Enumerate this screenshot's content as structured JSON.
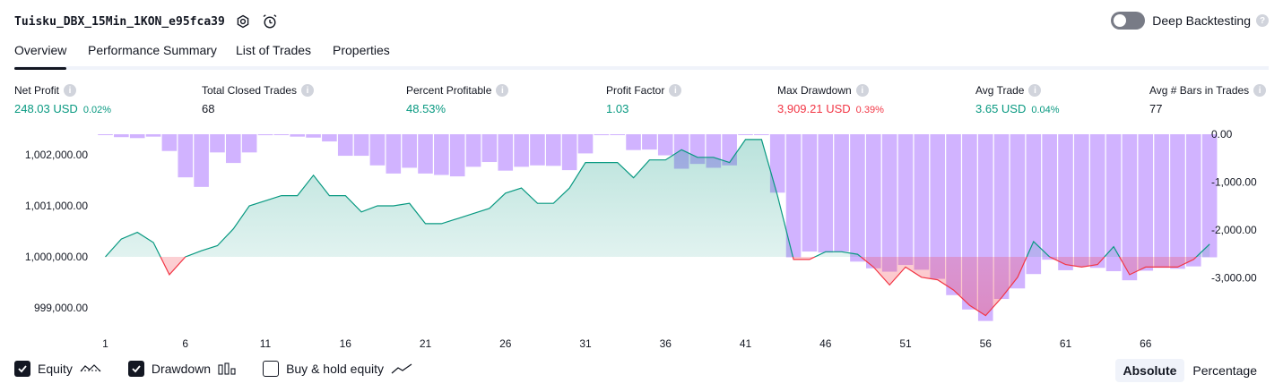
{
  "header": {
    "title": "Tuisku_DBX_15Min_1KON_e95fca39",
    "deep_backtesting_label": "Deep Backtesting"
  },
  "tabs": [
    {
      "label": "Overview",
      "active": true
    },
    {
      "label": "Performance Summary",
      "active": false
    },
    {
      "label": "List of Trades",
      "active": false
    },
    {
      "label": "Properties",
      "active": false
    }
  ],
  "metrics": [
    {
      "label": "Net Profit",
      "value": "248.03 USD",
      "pct": "0.02%",
      "color": "#089981"
    },
    {
      "label": "Total Closed Trades",
      "value": "68",
      "pct": "",
      "color": "#131722"
    },
    {
      "label": "Percent Profitable",
      "value": "48.53%",
      "pct": "",
      "color": "#089981"
    },
    {
      "label": "Profit Factor",
      "value": "1.03",
      "pct": "",
      "color": "#089981"
    },
    {
      "label": "Max Drawdown",
      "value": "3,909.21 USD",
      "pct": "0.39%",
      "color": "#f23645"
    },
    {
      "label": "Avg Trade",
      "value": "3.65 USD",
      "pct": "0.04%",
      "color": "#089981"
    },
    {
      "label": "Avg # Bars in Trades",
      "value": "77",
      "pct": "",
      "color": "#131722"
    }
  ],
  "chart_data": {
    "type": "area",
    "x_ticks": [
      1,
      6,
      11,
      16,
      21,
      26,
      31,
      36,
      41,
      46,
      51,
      56,
      61,
      66
    ],
    "left_axis": {
      "ticks": [
        "1,002,000.00",
        "1,001,000.00",
        "1,000,000.00",
        "999,000.00"
      ],
      "values": [
        1002000,
        1001000,
        1000000,
        999000
      ],
      "ylim": [
        998500,
        1002500
      ]
    },
    "right_axis": {
      "ticks": [
        "0.00",
        "-1,000.00",
        "-2,000.00",
        "-3,000.00"
      ],
      "values": [
        0,
        -1000,
        -2000,
        -3000
      ],
      "ylim": [
        -4000,
        0
      ]
    },
    "series": [
      {
        "name": "Equity",
        "baseline": 1000000,
        "values": [
          1000000,
          1000350,
          1000480,
          1000280,
          999650,
          1000000,
          1000120,
          1000220,
          1000550,
          1001000,
          1001100,
          1001200,
          1001200,
          1001600,
          1001200,
          1001200,
          1000880,
          1001000,
          1001000,
          1001050,
          1000650,
          1000650,
          1000750,
          1000850,
          1000950,
          1001250,
          1001350,
          1001050,
          1001050,
          1001350,
          1001850,
          1001850,
          1001850,
          1001550,
          1001900,
          1001900,
          1002100,
          1001950,
          1001950,
          1001850,
          1002300,
          1002300,
          1001200,
          999950,
          999950,
          1000100,
          1000100,
          1000050,
          999800,
          999450,
          999800,
          999600,
          999550,
          999350,
          999050,
          998850,
          999200,
          999600,
          1000300,
          1000000,
          999850,
          999800,
          999850,
          1000200,
          999650,
          999800,
          999800,
          999800,
          999950,
          1000250
        ]
      },
      {
        "name": "Drawdown",
        "values": [
          -10,
          -60,
          -80,
          -50,
          -350,
          -900,
          -1100,
          -380,
          -600,
          -380,
          -20,
          -10,
          -50,
          -70,
          -150,
          -450,
          -450,
          -650,
          -820,
          -700,
          -820,
          -850,
          -880,
          -680,
          -580,
          -760,
          -680,
          -650,
          -660,
          -750,
          -400,
          -20,
          -10,
          -330,
          -320,
          -440,
          -720,
          -620,
          -700,
          -650,
          -10,
          -10,
          -1220,
          -2570,
          -2450,
          -2470,
          -2450,
          -2660,
          -2800,
          -2870,
          -2730,
          -2830,
          -3020,
          -3360,
          -3660,
          -3900,
          -3440,
          -3220,
          -2920,
          -2620,
          -2840,
          -2760,
          -2790,
          -2860,
          -3050,
          -2850,
          -2790,
          -2810,
          -2760,
          -2570
        ]
      }
    ],
    "legend": [
      {
        "label": "Equity",
        "checked": true,
        "icon": "equity-icon"
      },
      {
        "label": "Drawdown",
        "checked": true,
        "icon": "drawdown-icon"
      },
      {
        "label": "Buy & hold equity",
        "checked": false,
        "icon": "buy-hold-icon"
      }
    ],
    "colors": {
      "equity_up": "#089981",
      "equity_down": "#f23645",
      "drawdown": "#d1b3ff"
    }
  },
  "scale_toggle": {
    "options": [
      "Absolute",
      "Percentage"
    ],
    "selected": "Absolute"
  }
}
